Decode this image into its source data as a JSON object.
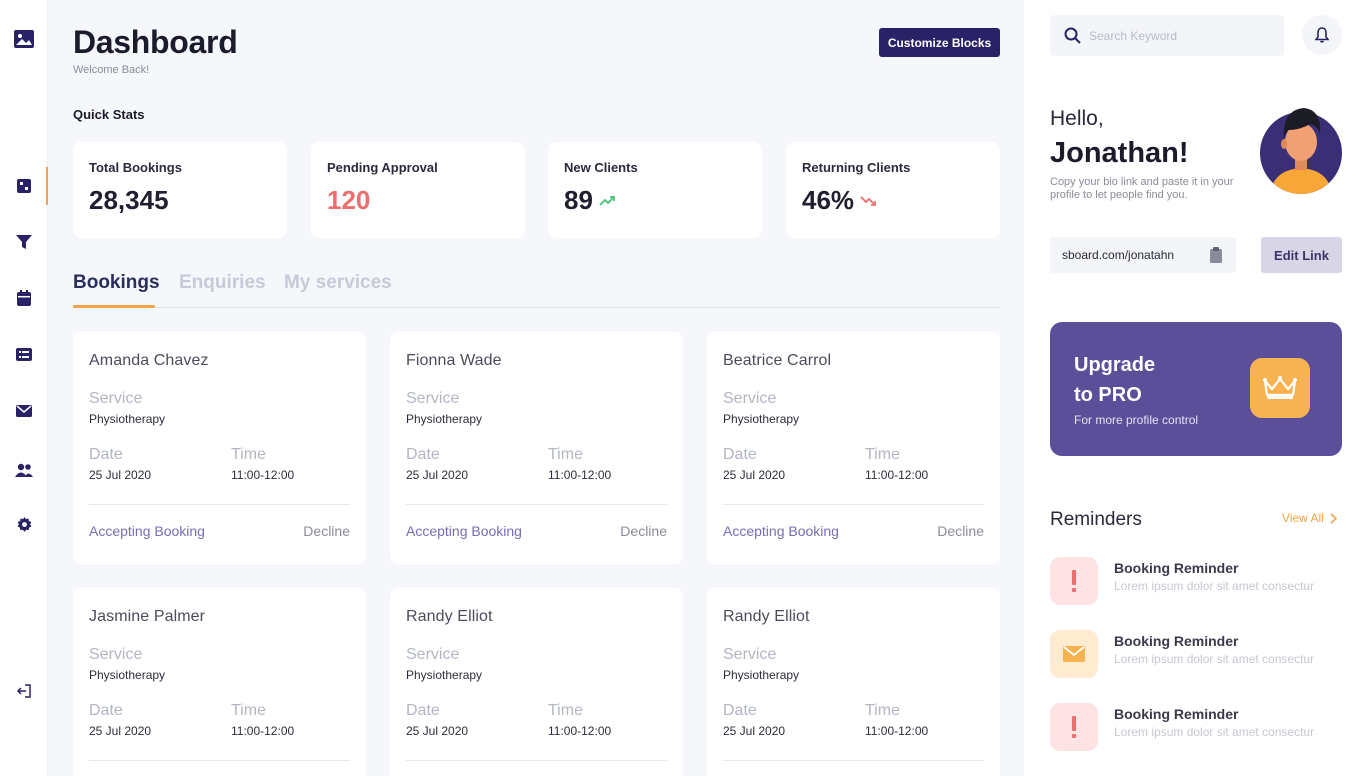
{
  "header": {
    "title": "Dashboard",
    "subtitle": "Welcome Back!",
    "customize_label": "Customize Blocks"
  },
  "quick_stats": {
    "label": "Quick Stats",
    "items": [
      {
        "label": "Total Bookings",
        "value": "28,345",
        "trend": "none"
      },
      {
        "label": "Pending Approval",
        "value": "120",
        "trend": "none",
        "color": "#ec6f70"
      },
      {
        "label": "New Clients",
        "value": "89",
        "trend": "up",
        "trend_color": "#46c27a"
      },
      {
        "label": "Returning Clients",
        "value": "46%",
        "trend": "down",
        "trend_color": "#ec6f70"
      }
    ]
  },
  "tabs": [
    {
      "label": "Bookings",
      "active": true
    },
    {
      "label": "Enquiries",
      "active": false
    },
    {
      "label": "My services",
      "active": false
    }
  ],
  "bookings": [
    {
      "name": "Amanda Chavez",
      "service_label": "Service",
      "service": "Physiotherapy",
      "date_label": "Date",
      "date": "25 Jul 2020",
      "time_label": "Time",
      "time": "11:00-12:00",
      "accept": "Accepting Booking",
      "decline": "Decline"
    },
    {
      "name": "Fionna Wade",
      "service_label": "Service",
      "service": "Physiotherapy",
      "date_label": "Date",
      "date": "25 Jul 2020",
      "time_label": "Time",
      "time": "11:00-12:00",
      "accept": "Accepting Booking",
      "decline": "Decline"
    },
    {
      "name": "Beatrice Carrol",
      "service_label": "Service",
      "service": "Physiotherapy",
      "date_label": "Date",
      "date": "25 Jul 2020",
      "time_label": "Time",
      "time": "11:00-12:00",
      "accept": "Accepting Booking",
      "decline": "Decline"
    },
    {
      "name": "Jasmine Palmer",
      "service_label": "Service",
      "service": "Physiotherapy",
      "date_label": "Date",
      "date": "25 Jul 2020",
      "time_label": "Time",
      "time": "11:00-12:00"
    },
    {
      "name": "Randy Elliot",
      "service_label": "Service",
      "service": "Physiotherapy",
      "date_label": "Date",
      "date": "25 Jul 2020",
      "time_label": "Time",
      "time": "11:00-12:00"
    },
    {
      "name": "Randy Elliot",
      "service_label": "Service",
      "service": "Physiotherapy",
      "date_label": "Date",
      "date": "25 Jul 2020",
      "time_label": "Time",
      "time": "11:00-12:00"
    }
  ],
  "sidebar": {
    "icons": [
      "gallery-icon",
      "dashboard-icon",
      "filter-icon",
      "calendar-icon",
      "list-icon",
      "mail-icon",
      "users-icon",
      "settings-icon",
      "logout-icon"
    ],
    "active": "dashboard-icon"
  },
  "right": {
    "search_placeholder": "Search Keyword",
    "hello": "Hello,",
    "user_name": "Jonathan!",
    "bio": "Copy your bio link and paste it in your profile to let people find you.",
    "link": "sboard.com/jonatahn",
    "edit_label": "Edit Link",
    "upgrade": {
      "line1": "Upgrade",
      "line2": "to PRO",
      "caption": "For more profile control"
    },
    "reminders_title": "Reminders",
    "view_all": "View All",
    "reminders": [
      {
        "icon": "alert-icon",
        "title": "Booking Reminder",
        "text": "Lorem ipsum dolor sit amet consectur"
      },
      {
        "icon": "mail-icon",
        "title": "Booking Reminder",
        "text": "Lorem ipsum dolor sit amet consectur"
      },
      {
        "icon": "alert-icon",
        "title": "Booking Reminder",
        "text": "Lorem ipsum dolor sit amet consectur"
      }
    ]
  },
  "colors": {
    "accent": "#f0a34a",
    "brand": "#2a2266",
    "purple": "#5c4f9a",
    "danger": "#ec6f70",
    "success": "#46c27a"
  }
}
